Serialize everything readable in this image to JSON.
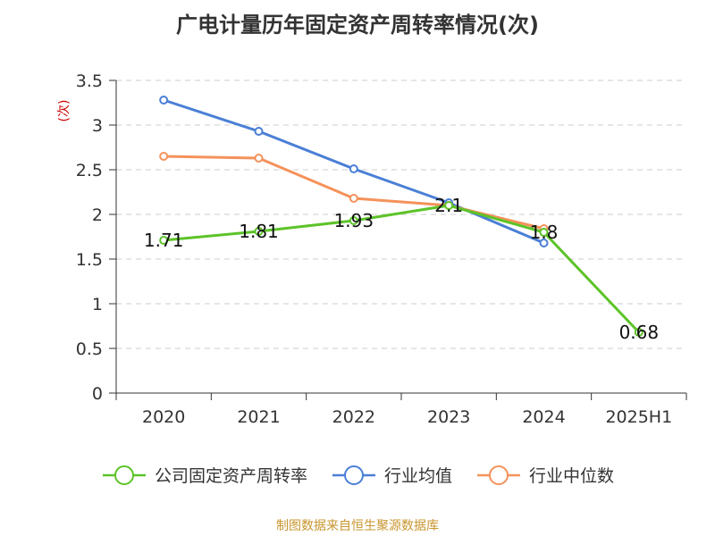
{
  "title": "广电计量历年固定资产周转率情况(次)",
  "footer": "制图数据来自恒生聚源数据库",
  "colors": {
    "series_company": "#5cc328",
    "series_industry_avg": "#4a7fd6",
    "series_industry_median": "#f5925a",
    "unit_label": "#cc0000",
    "axis": "#333333",
    "grid": "#cccccc"
  },
  "chart_data": {
    "type": "line",
    "x": [
      "2020",
      "2021",
      "2022",
      "2023",
      "2024",
      "2025H1"
    ],
    "ylabel": "(次)",
    "ylim": [
      0,
      3.5
    ],
    "yticks": [
      "0",
      "0.5",
      "1",
      "1.5",
      "2",
      "2.5",
      "3",
      "3.5"
    ],
    "grid": "horizontal dashed",
    "legend": "bottom",
    "series": [
      {
        "name": "公司固定资产周转率",
        "values": [
          1.71,
          1.81,
          1.93,
          2.1,
          1.8,
          0.68
        ],
        "labels": [
          "1.71",
          "1.81",
          "1.93",
          "2.1",
          "1.8",
          "0.68"
        ]
      },
      {
        "name": "行业均值",
        "values": [
          3.28,
          2.93,
          2.51,
          2.13,
          1.68,
          null
        ]
      },
      {
        "name": "行业中位数",
        "values": [
          2.65,
          2.63,
          2.18,
          2.1,
          1.84,
          null
        ]
      }
    ]
  }
}
